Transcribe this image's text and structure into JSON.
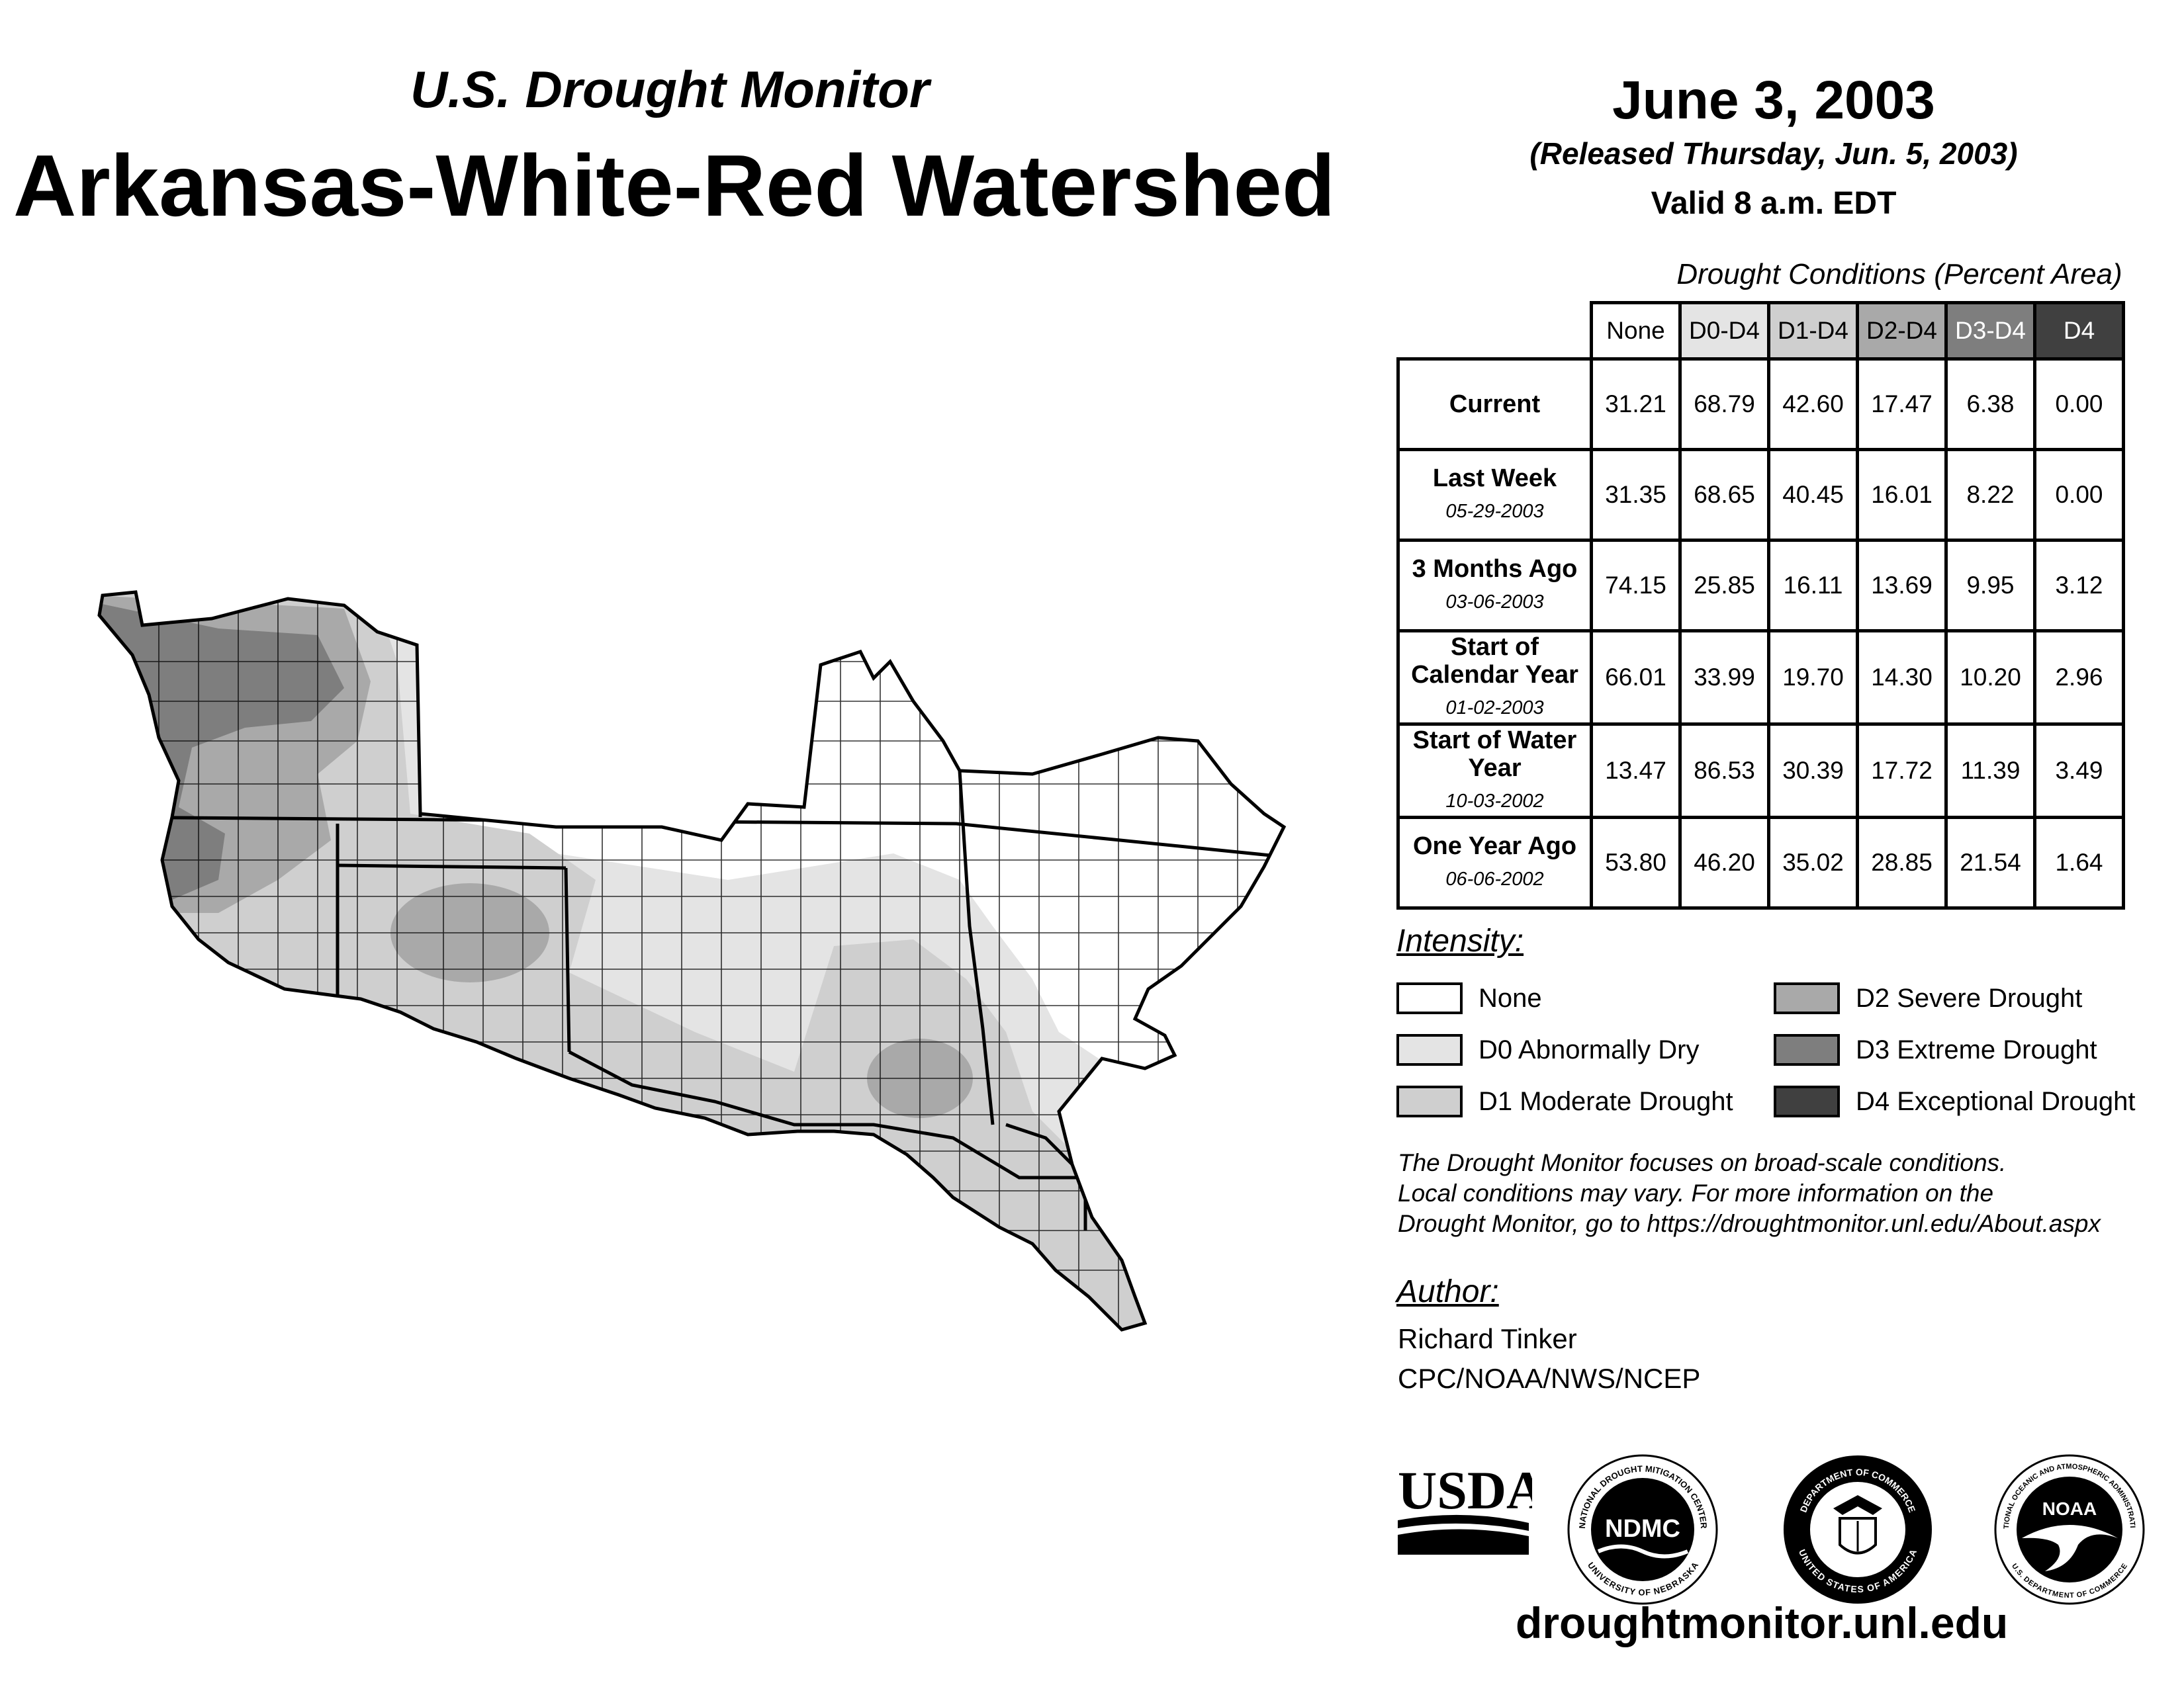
{
  "header": {
    "subtitle": "U.S. Drought Monitor",
    "title": "Arkansas-White-Red Watershed",
    "date": "June 3, 2003",
    "released": "(Released Thursday, Jun. 5, 2003)",
    "valid": "Valid 8 a.m. EDT"
  },
  "table": {
    "caption": "Drought Conditions (Percent Area)",
    "columns": [
      "None",
      "D0-D4",
      "D1-D4",
      "D2-D4",
      "D3-D4",
      "D4"
    ],
    "rows": [
      {
        "label": "Current",
        "date": "",
        "values": [
          "31.21",
          "68.79",
          "42.60",
          "17.47",
          "6.38",
          "0.00"
        ]
      },
      {
        "label": "Last Week",
        "date": "05-29-2003",
        "values": [
          "31.35",
          "68.65",
          "40.45",
          "16.01",
          "8.22",
          "0.00"
        ]
      },
      {
        "label": "3 Months Ago",
        "date": "03-06-2003",
        "values": [
          "74.15",
          "25.85",
          "16.11",
          "13.69",
          "9.95",
          "3.12"
        ]
      },
      {
        "label": "Start of Calendar Year",
        "date": "01-02-2003",
        "values": [
          "66.01",
          "33.99",
          "19.70",
          "14.30",
          "10.20",
          "2.96"
        ]
      },
      {
        "label": "Start of Water Year",
        "date": "10-03-2002",
        "values": [
          "13.47",
          "86.53",
          "30.39",
          "17.72",
          "11.39",
          "3.49"
        ]
      },
      {
        "label": "One Year Ago",
        "date": "06-06-2002",
        "values": [
          "53.80",
          "46.20",
          "35.02",
          "28.85",
          "21.54",
          "1.64"
        ]
      }
    ]
  },
  "legend": {
    "title": "Intensity:",
    "items": [
      {
        "label": "None",
        "color": "#ffffff"
      },
      {
        "label": "D0 Abnormally Dry",
        "color": "#e4e4e4"
      },
      {
        "label": "D1 Moderate Drought",
        "color": "#cfcfcf"
      },
      {
        "label": "D2 Severe Drought",
        "color": "#a9a9a9"
      },
      {
        "label": "D3 Extreme Drought",
        "color": "#7e7e7e"
      },
      {
        "label": "D4 Exceptional Drought",
        "color": "#404040"
      }
    ]
  },
  "note": {
    "line1": "The Drought Monitor focuses on broad-scale conditions.",
    "line2": "Local conditions may vary. For more information on the",
    "line3": "Drought Monitor, go to https://droughtmonitor.unl.edu/About.aspx"
  },
  "author": {
    "heading": "Author:",
    "name": "Richard Tinker",
    "org": "CPC/NOAA/NWS/NCEP"
  },
  "logos": {
    "usda": "USDA",
    "ndmc": "NDMC",
    "ndmc_ring_top": "NATIONAL DROUGHT MITIGATION CENTER",
    "ndmc_ring_bottom": "UNIVERSITY OF NEBRASKA",
    "commerce_ring_top": "DEPARTMENT OF COMMERCE",
    "commerce_ring_bottom": "UNITED STATES OF AMERICA",
    "noaa": "NOAA",
    "noaa_ring_top": "NATIONAL OCEANIC AND ATMOSPHERIC ADMINISTRATION",
    "noaa_ring_bottom": "U.S. DEPARTMENT OF COMMERCE"
  },
  "footer": {
    "site": "droughtmonitor.unl.edu"
  }
}
